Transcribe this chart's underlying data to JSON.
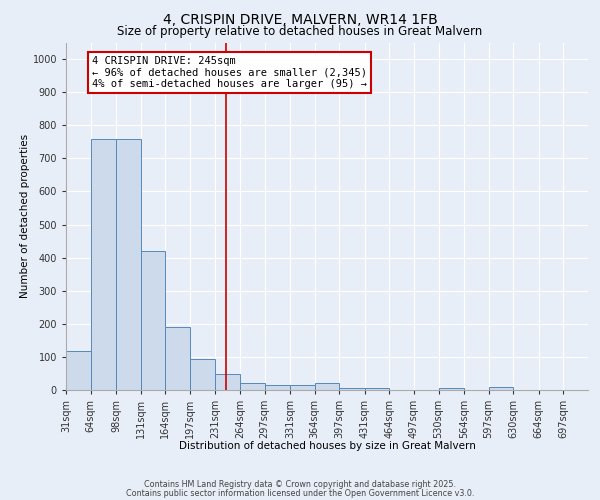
{
  "title": "4, CRISPIN DRIVE, MALVERN, WR14 1FB",
  "subtitle": "Size of property relative to detached houses in Great Malvern",
  "xlabel": "Distribution of detached houses by size in Great Malvern",
  "ylabel": "Number of detached properties",
  "bar_edges": [
    31,
    64,
    98,
    131,
    164,
    197,
    231,
    264,
    297,
    331,
    364,
    397,
    431,
    464,
    497,
    530,
    564,
    597,
    630,
    664,
    697
  ],
  "bar_heights": [
    117,
    757,
    757,
    420,
    190,
    95,
    48,
    20,
    15,
    15,
    20,
    5,
    5,
    0,
    0,
    5,
    0,
    8,
    0,
    0
  ],
  "bar_color": "#ccdaeb",
  "bar_edge_color": "#5588bb",
  "vline_x": 245,
  "vline_color": "#cc0000",
  "annotation_text": "4 CRISPIN DRIVE: 245sqm\n← 96% of detached houses are smaller (2,345)\n4% of semi-detached houses are larger (95) →",
  "annotation_box_color": "#ffffff",
  "annotation_box_edge_color": "#cc0000",
  "ylim": [
    0,
    1050
  ],
  "yticks": [
    0,
    100,
    200,
    300,
    400,
    500,
    600,
    700,
    800,
    900,
    1000
  ],
  "background_color": "#e8eef8",
  "grid_color": "#ffffff",
  "footer_line1": "Contains HM Land Registry data © Crown copyright and database right 2025.",
  "footer_line2": "Contains public sector information licensed under the Open Government Licence v3.0.",
  "title_fontsize": 10,
  "subtitle_fontsize": 8.5,
  "xlabel_fontsize": 7.5,
  "ylabel_fontsize": 7.5,
  "tick_fontsize": 7
}
